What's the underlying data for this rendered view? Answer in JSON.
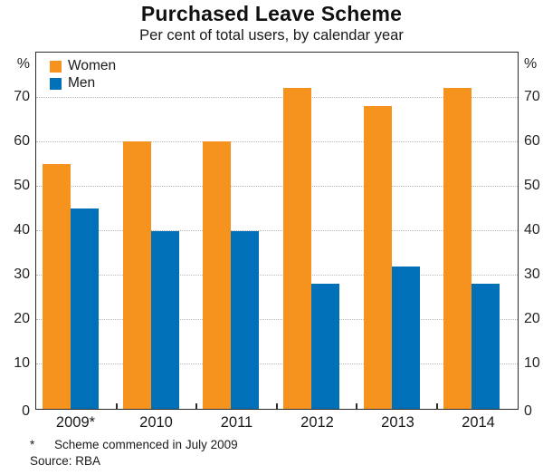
{
  "title": "Purchased Leave Scheme",
  "subtitle": "Per cent of total users, by calendar year",
  "legend": {
    "items": [
      {
        "label": "Women",
        "color": "#f6921e"
      },
      {
        "label": "Men",
        "color": "#0070b9"
      }
    ]
  },
  "axes": {
    "unit_label": "%",
    "y_tick_labels": [
      "70",
      "60",
      "50",
      "40",
      "30",
      "20",
      "10",
      "0"
    ],
    "y_tick_values": [
      70,
      60,
      50,
      40,
      30,
      20,
      10,
      0
    ]
  },
  "footnote": {
    "marker": "*",
    "text": "Scheme commenced in July 2009"
  },
  "source": "Source: RBA",
  "colors": {
    "women": "#f6921e",
    "men": "#0070b9",
    "axis_border": "#2b2b2b",
    "gridline": "#b9b9b9"
  },
  "chart_data": {
    "type": "bar",
    "categories": [
      "2009*",
      "2010",
      "2011",
      "2012",
      "2013",
      "2014"
    ],
    "series": [
      {
        "name": "Women",
        "color": "#f6921e",
        "values": [
          55,
          60,
          60,
          72,
          68,
          72
        ]
      },
      {
        "name": "Men",
        "color": "#0070b9",
        "values": [
          45,
          40,
          40,
          28,
          32,
          28
        ]
      }
    ],
    "title": "Purchased Leave Scheme",
    "subtitle": "Per cent of total users, by calendar year",
    "xlabel": "",
    "ylabel": "%",
    "ylim": [
      0,
      80
    ],
    "y_tick_step": 10,
    "grid": true,
    "gridline_style": "dotted",
    "legend_position": "top-left",
    "footnote": "* Scheme commenced in July 2009",
    "source": "Source: RBA"
  }
}
